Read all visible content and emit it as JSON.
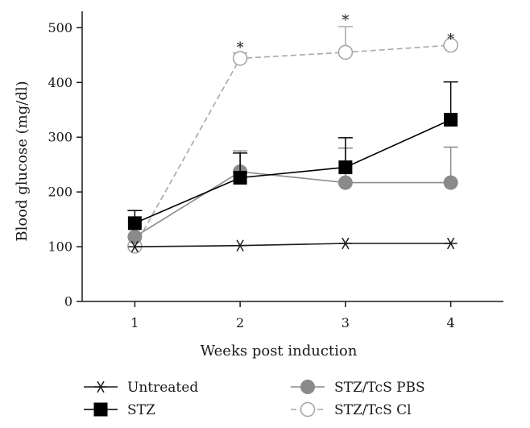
{
  "chart_data": {
    "type": "line",
    "title": "",
    "xlabel": "Weeks post induction",
    "ylabel": "Blood glucose (mg/dl)",
    "x": [
      1,
      2,
      3,
      4
    ],
    "x_tick_labels": [
      "1",
      "2",
      "3",
      "4"
    ],
    "xlim": [
      0.5,
      4.5
    ],
    "ylim": [
      0,
      530
    ],
    "y_ticks": [
      0,
      100,
      200,
      300,
      400,
      500
    ],
    "y_tick_labels": [
      "0",
      "100",
      "200",
      "300",
      "400",
      "500"
    ],
    "grid": false,
    "legend_position": "bottom",
    "series": [
      {
        "name": "Untreated",
        "marker": "asterisk",
        "color": "#1a1a1a",
        "dashed": false,
        "values": [
          100,
          102,
          106,
          106
        ],
        "error_upper": [
          0,
          0,
          0,
          0
        ]
      },
      {
        "name": "STZ",
        "marker": "square",
        "color": "#000000",
        "dashed": false,
        "values": [
          143,
          226,
          245,
          332
        ],
        "error_upper": [
          23,
          45,
          54,
          69
        ]
      },
      {
        "name": "STZ/TcS PBS",
        "marker": "circle-filled",
        "color": "#8a8a8a",
        "dashed": false,
        "values": [
          118,
          237,
          217,
          217
        ],
        "error_upper": [
          0,
          38,
          63,
          65
        ]
      },
      {
        "name": "STZ/TcS Cl",
        "marker": "circle-open",
        "color": "#a8a8a8",
        "dashed": true,
        "values": [
          101,
          444,
          455,
          468
        ],
        "error_upper": [
          0,
          10,
          47,
          0
        ]
      }
    ],
    "annotations": [
      {
        "text": "*",
        "x": 2,
        "y_value": 467
      },
      {
        "text": "*",
        "x": 3,
        "y_value": 517
      },
      {
        "text": "*",
        "x": 4,
        "y_value": 482
      }
    ]
  }
}
